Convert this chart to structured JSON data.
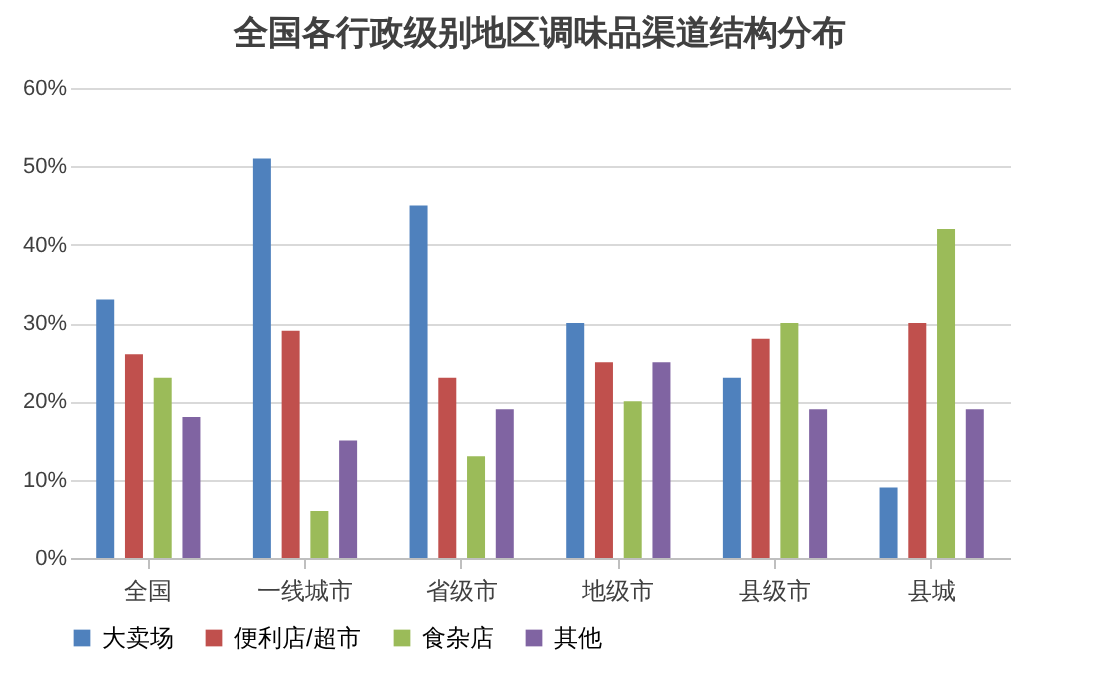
{
  "chart_data": {
    "type": "bar",
    "title": "全国各行政级别地区调味品渠道结构分布",
    "categories": [
      "全国",
      "一线城市",
      "省级市",
      "地级市",
      "县级市",
      "县城"
    ],
    "series": [
      {
        "name": "大卖场",
        "color": "#4f81bd",
        "values": [
          33,
          51,
          45,
          30,
          23,
          9
        ]
      },
      {
        "name": "便利店/超市",
        "color": "#c0504d",
        "values": [
          26,
          29,
          23,
          25,
          28,
          30
        ]
      },
      {
        "name": "食杂店",
        "color": "#9bbb59",
        "values": [
          23,
          6,
          13,
          20,
          30,
          42
        ]
      },
      {
        "name": "其他",
        "color": "#8064a2",
        "values": [
          18,
          15,
          19,
          25,
          19,
          19
        ]
      }
    ],
    "ylim": [
      0,
      60
    ],
    "yticks": [
      {
        "value": 0,
        "label": "0%"
      },
      {
        "value": 10,
        "label": "10%"
      },
      {
        "value": 20,
        "label": "20%"
      },
      {
        "value": 30,
        "label": "30%"
      },
      {
        "value": 40,
        "label": "40%"
      },
      {
        "value": 50,
        "label": "50%"
      },
      {
        "value": 60,
        "label": "60%"
      }
    ],
    "grid": "y",
    "legend": "bottom"
  }
}
